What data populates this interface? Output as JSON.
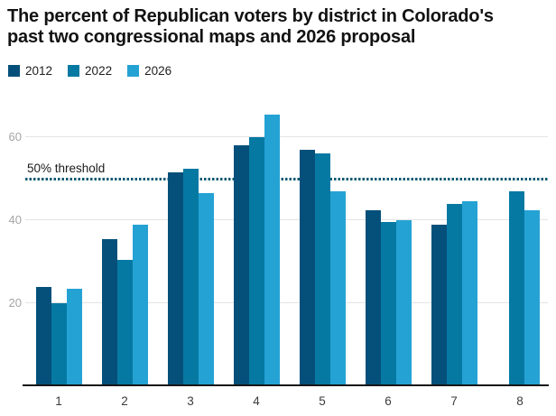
{
  "title": {
    "lines": [
      "The percent of Republican voters by district in Colorado's",
      "past two congressional maps and 2026 proposal"
    ]
  },
  "chart_data": {
    "type": "bar",
    "title": "The percent of Republican voters by district in Colorado's past two congressional maps and 2026 proposal",
    "categories": [
      "1",
      "2",
      "3",
      "4",
      "5",
      "6",
      "7",
      "8"
    ],
    "series": [
      {
        "name": "2012",
        "color": "#05507A",
        "values": [
          24,
          35.5,
          51.5,
          58,
          57,
          42.5,
          39,
          null
        ]
      },
      {
        "name": "2022",
        "color": "#0679A3",
        "values": [
          20,
          30.5,
          52.5,
          60,
          56,
          39.5,
          44,
          47
        ]
      },
      {
        "name": "2026",
        "color": "#25A2D4",
        "values": [
          23.5,
          39,
          46.5,
          65.5,
          47,
          40,
          44.5,
          42.5
        ]
      }
    ],
    "y_ticks": [
      20,
      40,
      60
    ],
    "ylim": [
      0,
      70
    ],
    "threshold": {
      "value": 50,
      "label": "50% threshold",
      "color": "#0E5A72"
    },
    "grid": "horizontal",
    "legend_position": "top-left",
    "colors": {
      "gridline": "#e4e4e4",
      "axis_line": "#161616",
      "y_tick_text": "#a5a5a5",
      "x_tick_text": "#3c3c3c",
      "title_text": "#121212"
    }
  }
}
